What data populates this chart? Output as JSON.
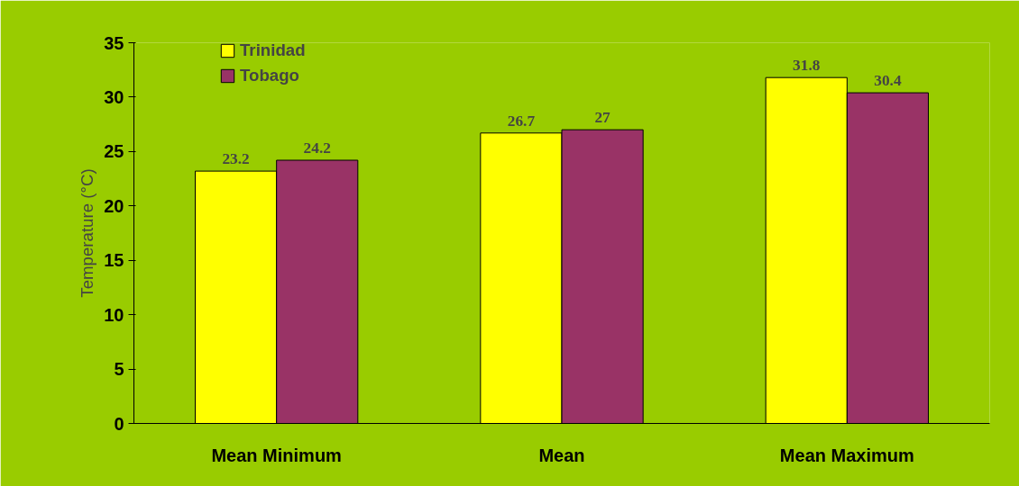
{
  "chart_data": {
    "type": "bar",
    "ylabel": "Temperature (°C)",
    "categories": [
      "Mean Minimum",
      "Mean",
      "Mean Maximum"
    ],
    "series": [
      {
        "name": "Trinidad",
        "color": "#ffff00",
        "values": [
          23.2,
          26.7,
          31.8
        ]
      },
      {
        "name": "Tobago",
        "color": "#993366",
        "values": [
          24.2,
          27,
          30.4
        ]
      }
    ],
    "ylim": [
      0,
      35
    ],
    "yticks": [
      0,
      5,
      10,
      15,
      20,
      25,
      30,
      35
    ],
    "grid": false,
    "legend": "top left",
    "data_labels": true
  }
}
